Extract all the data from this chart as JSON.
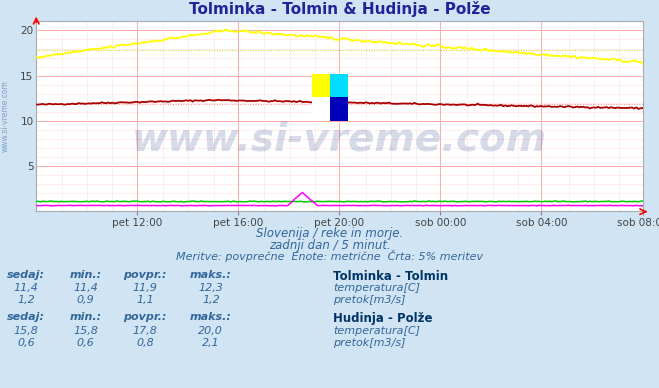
{
  "title": "Tolminka - Tolmin & Hudinja - Polže",
  "bg_color": "#d0e4f4",
  "plot_bg_color": "#ffffff",
  "grid_color_major": "#ffaaaa",
  "grid_color_minor": "#ffdddd",
  "grid_color_avg_tolmin_temp": "#ff9999",
  "grid_color_avg_polze_temp": "#dddd00",
  "xlabel_ticks": [
    "pet 12:00",
    "pet 16:00",
    "pet 20:00",
    "sob 00:00",
    "sob 04:00",
    "sob 08:00"
  ],
  "ylim": [
    0,
    21
  ],
  "ytick_labels": [
    "",
    "5",
    "10",
    "15",
    "20"
  ],
  "ytick_vals": [
    0,
    5,
    10,
    15,
    20
  ],
  "subtitle_lines": [
    "Slovenija / reke in morje.",
    "zadnji dan / 5 minut.",
    "Meritve: povprečne  Enote: metrične  Črta: 5% meritev"
  ],
  "tolmin_temp_color": "#aa0000",
  "tolmin_flow_color": "#00cc00",
  "polze_temp_color": "#ffff00",
  "polze_flow_color": "#ff00ff",
  "watermark_text": "www.si-vreme.com",
  "watermark_color": "#1a3a8a",
  "watermark_alpha": 0.18,
  "watermark_fontsize": 28,
  "left_label": "www.si-vreme.com",
  "n_points": 288,
  "tolmin_temp_avg": 11.9,
  "polze_temp_avg": 17.8,
  "table_headers": [
    "sedaj:",
    "min.:",
    "povpr.:",
    "maks.:"
  ],
  "tolmin_name": "Tolminka - Tolmin",
  "tolmin_temp_row": {
    "sedaj": "11,4",
    "min": "11,4",
    "povpr": "11,9",
    "maks": "12,3",
    "label": "temperatura[C]",
    "color": "#cc0000"
  },
  "tolmin_flow_row": {
    "sedaj": "1,2",
    "min": "0,9",
    "povpr": "1,1",
    "maks": "1,2",
    "label": "pretok[m3/s]",
    "color": "#00cc00"
  },
  "polze_name": "Hudinja - Polže",
  "polze_temp_row": {
    "sedaj": "15,8",
    "min": "15,8",
    "povpr": "17,8",
    "maks": "20,0",
    "label": "temperatura[C]",
    "color": "#ffff00"
  },
  "polze_flow_row": {
    "sedaj": "0,6",
    "min": "0,6",
    "povpr": "0,8",
    "maks": "2,1",
    "label": "pretok[m3/s]",
    "color": "#ff00ff"
  }
}
